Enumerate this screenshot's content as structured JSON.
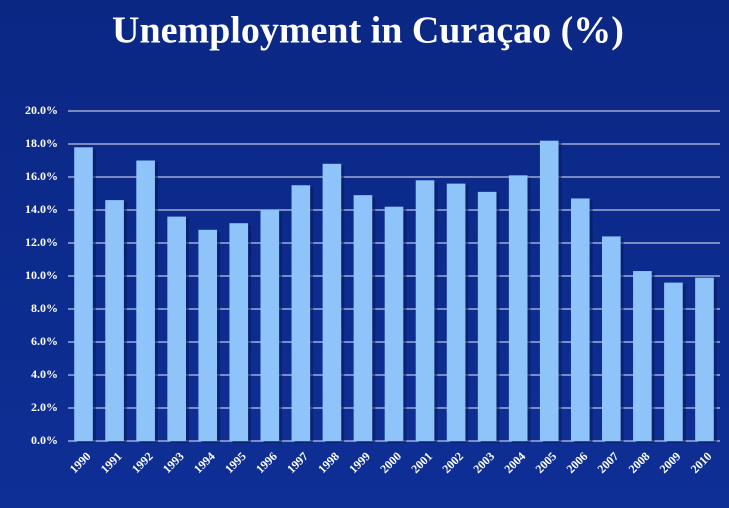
{
  "chart_data": {
    "type": "bar",
    "title": "Unemployment in Curaçao (%)",
    "categories": [
      "1990",
      "1991",
      "1992",
      "1993",
      "1994",
      "1995",
      "1996",
      "1997",
      "1998",
      "1999",
      "2000",
      "2001",
      "2002",
      "2003",
      "2004",
      "2005",
      "2006",
      "2007",
      "2008",
      "2009",
      "2010"
    ],
    "values": [
      17.8,
      14.6,
      17.0,
      13.6,
      12.8,
      13.2,
      14.0,
      15.5,
      16.8,
      14.9,
      14.2,
      15.8,
      15.6,
      15.1,
      16.1,
      18.2,
      14.7,
      12.4,
      10.3,
      9.6,
      9.9
    ],
    "color": "#8fc4fb",
    "ylim": [
      0,
      20
    ],
    "yticks": [
      {
        "value": 0,
        "label": "0.0%"
      },
      {
        "value": 2,
        "label": "2.0%"
      },
      {
        "value": 4,
        "label": "4.0%"
      },
      {
        "value": 6,
        "label": "6.0%"
      },
      {
        "value": 8,
        "label": "8.0%"
      },
      {
        "value": 10,
        "label": "10.0%"
      },
      {
        "value": 12,
        "label": "12.0%"
      },
      {
        "value": 14,
        "label": "14.0%"
      },
      {
        "value": 16,
        "label": "16.0%"
      },
      {
        "value": 18,
        "label": "18.0%"
      },
      {
        "value": 20,
        "label": "20.0%"
      }
    ],
    "grid": true
  }
}
